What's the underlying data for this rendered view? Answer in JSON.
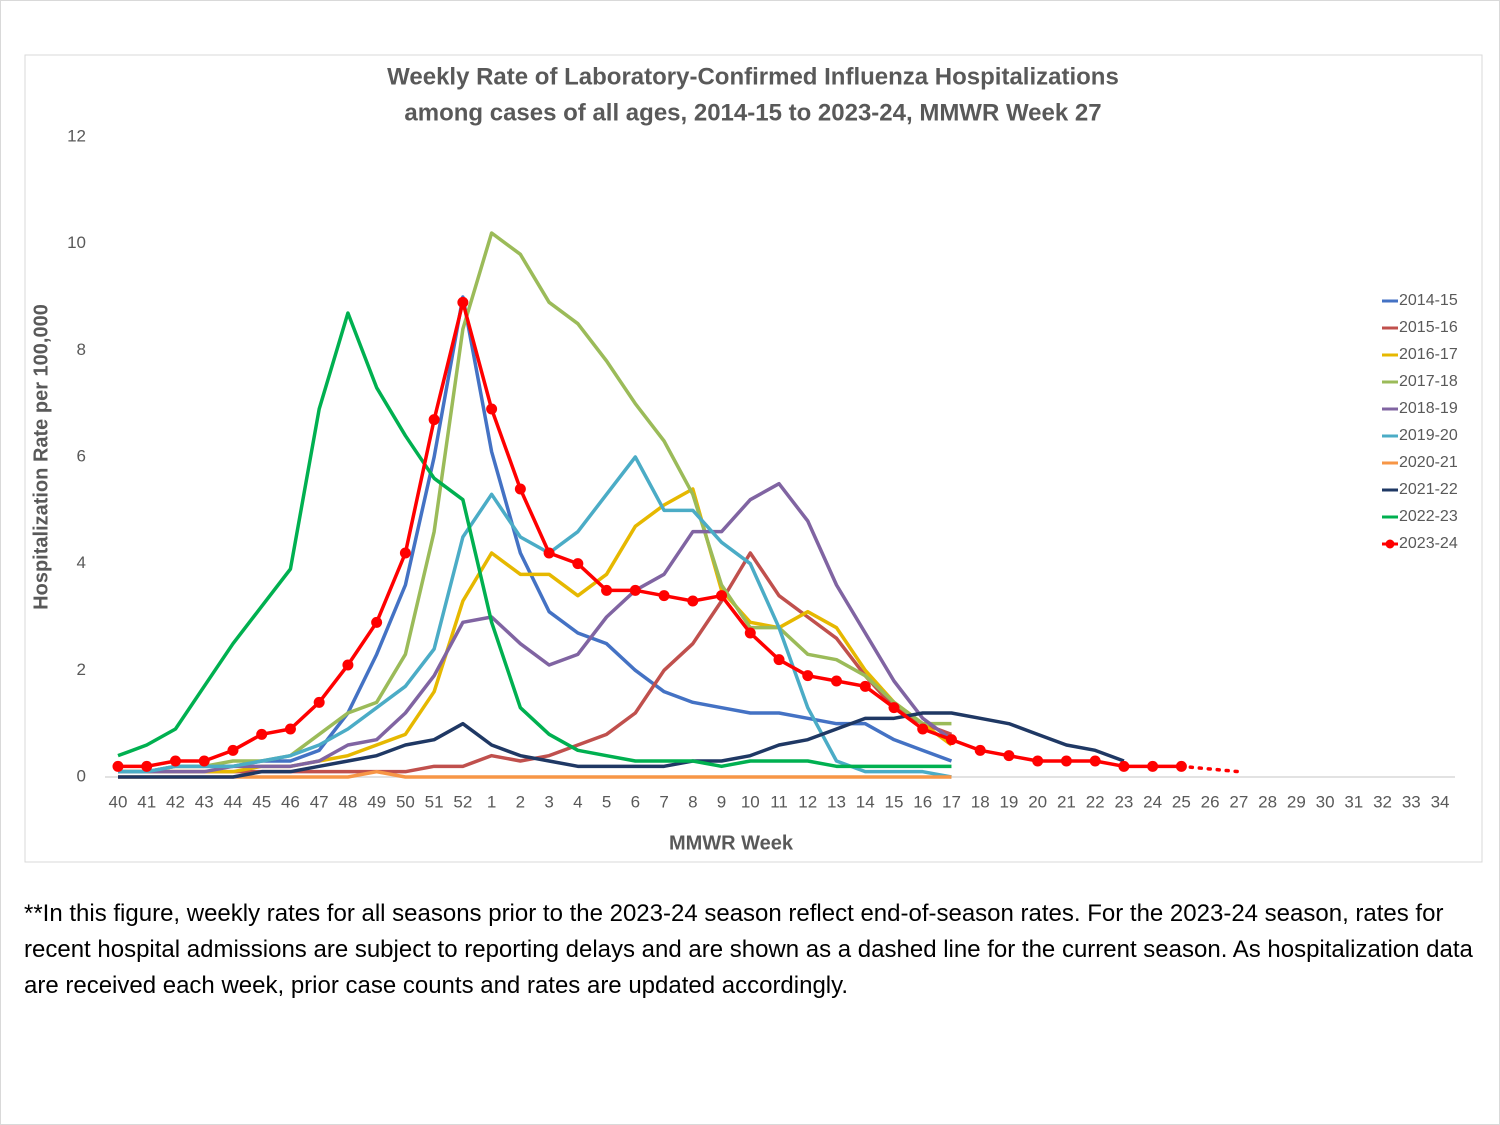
{
  "chart_data": {
    "type": "line",
    "title": [
      "Weekly Rate of Laboratory-Confirmed Influenza Hospitalizations",
      "among cases of all ages, 2014-15 to 2023-24, MMWR Week 27"
    ],
    "x_label": "MMWR Week",
    "y_label": "Hospitalization Rate per 100,000",
    "categories": [
      "40",
      "41",
      "42",
      "43",
      "44",
      "45",
      "46",
      "47",
      "48",
      "49",
      "50",
      "51",
      "52",
      "1",
      "2",
      "3",
      "4",
      "5",
      "6",
      "7",
      "8",
      "9",
      "10",
      "11",
      "12",
      "13",
      "14",
      "15",
      "16",
      "17",
      "18",
      "19",
      "20",
      "21",
      "22",
      "23",
      "24",
      "25",
      "26",
      "27",
      "28",
      "29",
      "30",
      "31",
      "32",
      "33",
      "34"
    ],
    "ylim": [
      0,
      12
    ],
    "yticks": [
      0,
      2,
      4,
      6,
      8,
      10,
      12
    ],
    "grid": false,
    "legend": "right",
    "series": [
      {
        "name": "2014-15",
        "color": "#4472c4",
        "values": [
          0.1,
          0.1,
          0.2,
          0.2,
          0.2,
          0.3,
          0.3,
          0.5,
          1.2,
          2.3,
          3.6,
          6.0,
          9.0,
          6.1,
          4.2,
          3.1,
          2.7,
          2.5,
          2.0,
          1.6,
          1.4,
          1.3,
          1.2,
          1.2,
          1.1,
          1.0,
          1.0,
          0.7,
          0.5,
          0.3,
          null,
          null,
          null,
          null,
          null,
          null,
          null,
          null,
          null,
          null,
          null,
          null,
          null,
          null,
          null,
          null,
          null
        ]
      },
      {
        "name": "2015-16",
        "color": "#c0504d",
        "values": [
          0.1,
          0.1,
          0.1,
          0.1,
          0.1,
          0.1,
          0.1,
          0.1,
          0.1,
          0.1,
          0.1,
          0.2,
          0.2,
          0.4,
          0.3,
          0.4,
          0.6,
          0.8,
          1.2,
          2.0,
          2.5,
          3.3,
          4.2,
          3.4,
          3.0,
          2.6,
          1.9,
          1.3,
          1.0,
          0.8,
          null,
          null,
          null,
          null,
          null,
          null,
          null,
          null,
          null,
          null,
          null,
          null,
          null,
          null,
          null,
          null,
          null
        ]
      },
      {
        "name": "2016-17",
        "color": "#e6b800",
        "values": [
          0.1,
          0.1,
          0.1,
          0.1,
          0.1,
          0.2,
          0.2,
          0.3,
          0.4,
          0.6,
          0.8,
          1.6,
          3.3,
          4.2,
          3.8,
          3.8,
          3.4,
          3.8,
          4.7,
          5.1,
          5.4,
          3.5,
          2.9,
          2.8,
          3.1,
          2.8,
          2.0,
          1.4,
          1.0,
          0.6,
          null,
          null,
          null,
          null,
          null,
          null,
          null,
          null,
          null,
          null,
          null,
          null,
          null,
          null,
          null,
          null,
          null
        ]
      },
      {
        "name": "2017-18",
        "color": "#9bbb59",
        "values": [
          0.1,
          0.1,
          0.2,
          0.2,
          0.3,
          0.3,
          0.4,
          0.8,
          1.2,
          1.4,
          2.3,
          4.6,
          8.4,
          10.2,
          9.8,
          8.9,
          8.5,
          7.8,
          7.0,
          6.3,
          5.3,
          3.6,
          2.8,
          2.8,
          2.3,
          2.2,
          1.9,
          1.4,
          1.0,
          1.0,
          null,
          null,
          null,
          null,
          null,
          null,
          null,
          null,
          null,
          null,
          null,
          null,
          null,
          null,
          null,
          null,
          null
        ]
      },
      {
        "name": "2018-19",
        "color": "#8064a2",
        "values": [
          0.1,
          0.1,
          0.1,
          0.1,
          0.2,
          0.2,
          0.2,
          0.3,
          0.6,
          0.7,
          1.2,
          1.9,
          2.9,
          3.0,
          2.5,
          2.1,
          2.3,
          3.0,
          3.5,
          3.8,
          4.6,
          4.6,
          5.2,
          5.5,
          4.8,
          3.6,
          2.7,
          1.8,
          1.1,
          0.7,
          null,
          null,
          null,
          null,
          null,
          null,
          null,
          null,
          null,
          null,
          null,
          null,
          null,
          null,
          null,
          null,
          null
        ]
      },
      {
        "name": "2019-20",
        "color": "#4bacc6",
        "values": [
          0.1,
          0.1,
          0.2,
          0.2,
          0.2,
          0.3,
          0.4,
          0.6,
          0.9,
          1.3,
          1.7,
          2.4,
          4.5,
          5.3,
          4.5,
          4.2,
          4.6,
          5.3,
          6.0,
          5.0,
          5.0,
          4.4,
          4.0,
          2.8,
          1.3,
          0.3,
          0.1,
          0.1,
          0.1,
          0,
          null,
          null,
          null,
          null,
          null,
          null,
          null,
          null,
          null,
          null,
          null,
          null,
          null,
          null,
          null,
          null,
          null
        ]
      },
      {
        "name": "2020-21",
        "color": "#f79646",
        "values": [
          0,
          0,
          0,
          0,
          0,
          0,
          0,
          0,
          0,
          0.1,
          0,
          0,
          0,
          0,
          0,
          0,
          0,
          0,
          0,
          0,
          0,
          0,
          0,
          0,
          0,
          0,
          0,
          0,
          0,
          0,
          null,
          null,
          null,
          null,
          null,
          null,
          null,
          null,
          null,
          null,
          null,
          null,
          null,
          null,
          null,
          null,
          null
        ]
      },
      {
        "name": "2021-22",
        "color": "#1f3864",
        "values": [
          0,
          0,
          0,
          0,
          0,
          0.1,
          0.1,
          0.2,
          0.3,
          0.4,
          0.6,
          0.7,
          1.0,
          0.6,
          0.4,
          0.3,
          0.2,
          0.2,
          0.2,
          0.2,
          0.3,
          0.3,
          0.4,
          0.6,
          0.7,
          0.9,
          1.1,
          1.1,
          1.2,
          1.2,
          1.1,
          1.0,
          0.8,
          0.6,
          0.5,
          0.3,
          null,
          null,
          null,
          null,
          null,
          null,
          null,
          null,
          null,
          null,
          null
        ]
      },
      {
        "name": "2022-23",
        "color": "#00b050",
        "values": [
          0.4,
          0.6,
          0.9,
          1.7,
          2.5,
          3.2,
          3.9,
          6.9,
          8.7,
          7.3,
          6.4,
          5.6,
          5.2,
          2.9,
          1.3,
          0.8,
          0.5,
          0.4,
          0.3,
          0.3,
          0.3,
          0.2,
          0.3,
          0.3,
          0.3,
          0.2,
          0.2,
          0.2,
          0.2,
          0.2,
          null,
          null,
          null,
          null,
          null,
          null,
          null,
          null,
          null,
          null,
          null,
          null,
          null,
          null,
          null,
          null,
          null
        ]
      },
      {
        "name": "2023-24",
        "color": "#ff0000",
        "markers": true,
        "dashed_from": 37,
        "values": [
          0.2,
          0.2,
          0.3,
          0.3,
          0.5,
          0.8,
          0.9,
          1.4,
          2.1,
          2.9,
          4.2,
          6.7,
          8.9,
          6.9,
          5.4,
          4.2,
          4.0,
          3.5,
          3.5,
          3.4,
          3.3,
          3.4,
          2.7,
          2.2,
          1.9,
          1.8,
          1.7,
          1.3,
          0.9,
          0.7,
          0.5,
          0.4,
          0.3,
          0.3,
          0.3,
          0.2,
          0.2,
          0.2,
          0.15,
          0.1,
          null,
          null,
          null,
          null,
          null,
          null,
          null
        ]
      }
    ]
  },
  "footnote": "**In this figure, weekly rates for all seasons prior to the 2023-24 season reflect end-of-season rates. For the 2023-24 season, rates for recent hospital admissions are subject to reporting delays and are shown as a dashed line for the current season. As hospitalization data are received each week, prior case counts and rates are updated accordingly."
}
